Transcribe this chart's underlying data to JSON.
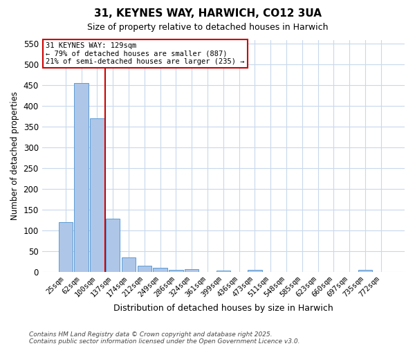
{
  "title": "31, KEYNES WAY, HARWICH, CO12 3UA",
  "subtitle": "Size of property relative to detached houses in Harwich",
  "xlabel": "Distribution of detached houses by size in Harwich",
  "ylabel": "Number of detached properties",
  "categories": [
    "25sqm",
    "62sqm",
    "100sqm",
    "137sqm",
    "174sqm",
    "212sqm",
    "249sqm",
    "286sqm",
    "324sqm",
    "361sqm",
    "399sqm",
    "436sqm",
    "473sqm",
    "511sqm",
    "548sqm",
    "585sqm",
    "623sqm",
    "660sqm",
    "697sqm",
    "735sqm",
    "772sqm"
  ],
  "values": [
    120,
    455,
    370,
    128,
    35,
    15,
    9,
    5,
    6,
    0,
    3,
    0,
    4,
    0,
    0,
    0,
    0,
    0,
    0,
    4,
    0
  ],
  "bar_color": "#aec6e8",
  "bar_edge_color": "#5b9bd5",
  "ylim": [
    0,
    560
  ],
  "yticks": [
    0,
    50,
    100,
    150,
    200,
    250,
    300,
    350,
    400,
    450,
    500,
    550
  ],
  "red_line_index": 3,
  "annotation_line1": "31 KEYNES WAY: 129sqm",
  "annotation_line2": "← 79% of detached houses are smaller (887)",
  "annotation_line3": "21% of semi-detached houses are larger (235) →",
  "annotation_box_color": "#ffffff",
  "annotation_box_edge": "#cc0000",
  "property_line_color": "#cc0000",
  "footnote1": "Contains HM Land Registry data © Crown copyright and database right 2025.",
  "footnote2": "Contains public sector information licensed under the Open Government Licence v3.0.",
  "background_color": "#ffffff",
  "grid_color": "#c8d8ec"
}
